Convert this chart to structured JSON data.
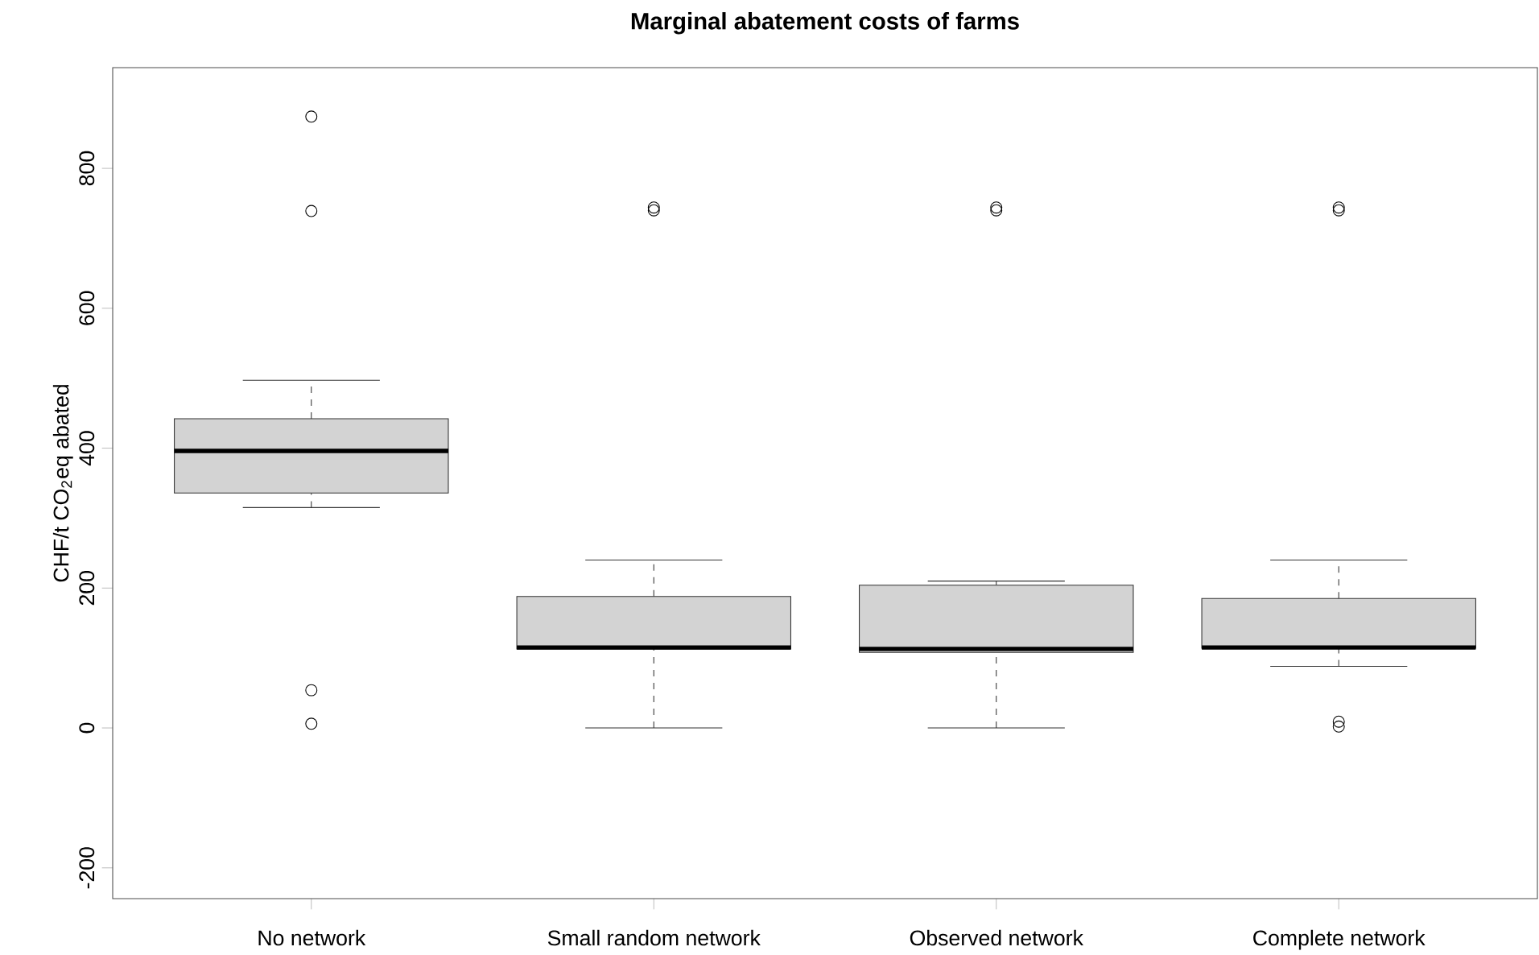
{
  "chart_data": {
    "type": "box",
    "title": "Marginal abatement costs of farms",
    "ylabel": "CHF/t CO$_{2}$eq abated",
    "categories": [
      "No network",
      "Small random network",
      "Observed network",
      "Complete network"
    ],
    "color": "#d3d3d3",
    "boxes": [
      {
        "low": 315,
        "q1": 336,
        "median": 396,
        "q3": 442,
        "high": 497,
        "outliers": [
          874,
          739,
          54,
          6
        ]
      },
      {
        "low": 0,
        "q1": 113,
        "median": 115,
        "q3": 188,
        "high": 240,
        "outliers": [
          740,
          744
        ]
      },
      {
        "low": 0,
        "q1": 108,
        "median": 113,
        "q3": 204,
        "high": 210,
        "outliers": [
          740,
          744
        ]
      },
      {
        "low": 88,
        "q1": 114,
        "median": 115,
        "q3": 185,
        "high": 240,
        "outliers": [
          740,
          744,
          9,
          2
        ]
      }
    ],
    "ylim": [
      -244,
      944
    ],
    "yticks": [
      -200,
      0,
      200,
      400,
      600,
      800
    ],
    "grid": false
  }
}
